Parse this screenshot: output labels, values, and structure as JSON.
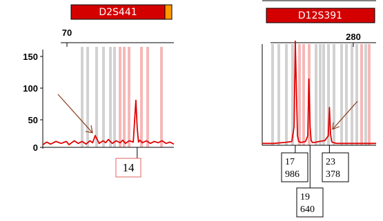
{
  "colors": {
    "marker_fill": "#d40000",
    "marker_accent": "#ff9900",
    "trace": "#e00000",
    "bin_gray": "#d2d2d2",
    "bin_pink": "#f6b8b8",
    "arrow": "#8b3a1a",
    "call_box_border_left": "#e06060",
    "call_box_border_right": "#000000"
  },
  "chart_data": [
    {
      "type": "line",
      "marker": "D2S441",
      "x_tick_labels": [
        "70"
      ],
      "y_tick_labels": [
        "150",
        "100",
        "50",
        "0"
      ],
      "ylim": [
        0,
        160
      ],
      "series": [
        {
          "x": [
            0,
            0.03,
            0.06,
            0.1,
            0.14,
            0.18,
            0.2,
            0.24,
            0.27,
            0.3,
            0.33,
            0.36,
            0.38,
            0.4,
            0.43,
            0.46,
            0.48,
            0.5,
            0.53,
            0.56,
            0.59,
            0.61,
            0.63,
            0.66,
            0.69,
            0.7,
            0.71,
            0.72,
            0.73,
            0.74,
            0.76,
            0.79,
            0.82,
            0.85,
            0.88,
            0.91,
            0.94,
            0.97,
            1.0
          ],
          "y": [
            4,
            8,
            5,
            9,
            6,
            9,
            4,
            10,
            6,
            9,
            5,
            10,
            7,
            18,
            6,
            10,
            7,
            12,
            6,
            10,
            7,
            11,
            6,
            10,
            8,
            40,
            72,
            30,
            8,
            11,
            7,
            10,
            6,
            9,
            7,
            10,
            6,
            8,
            5
          ]
        }
      ],
      "annotation_arrow": {
        "x": 0.4,
        "y": 18
      },
      "allele_calls": [
        {
          "allele": "14",
          "x": 0.72
        }
      ]
    },
    {
      "type": "line",
      "marker": "D12S391",
      "x_tick_labels": [
        "280"
      ],
      "y_tick_labels": [],
      "ylim": [
        0,
        120
      ],
      "series": [
        {
          "x": [
            0,
            0.1,
            0.2,
            0.26,
            0.28,
            0.29,
            0.3,
            0.31,
            0.32,
            0.34,
            0.38,
            0.4,
            0.41,
            0.42,
            0.43,
            0.44,
            0.46,
            0.5,
            0.55,
            0.58,
            0.59,
            0.6,
            0.61,
            0.62,
            0.65,
            0.75,
            0.85,
            1.0
          ],
          "y": [
            2,
            2,
            3,
            4,
            20,
            110,
            60,
            10,
            4,
            3,
            4,
            10,
            70,
            20,
            5,
            3,
            3,
            4,
            5,
            10,
            40,
            12,
            4,
            3,
            2,
            2,
            2,
            2
          ]
        }
      ],
      "annotation_arrow": {
        "x": 0.6,
        "y": 14
      },
      "allele_calls": [
        {
          "allele": "17",
          "height": "986",
          "x": 0.29
        },
        {
          "allele": "19",
          "height": "640",
          "x": 0.42
        },
        {
          "allele": "23",
          "height": "378",
          "x": 0.59
        }
      ]
    }
  ]
}
